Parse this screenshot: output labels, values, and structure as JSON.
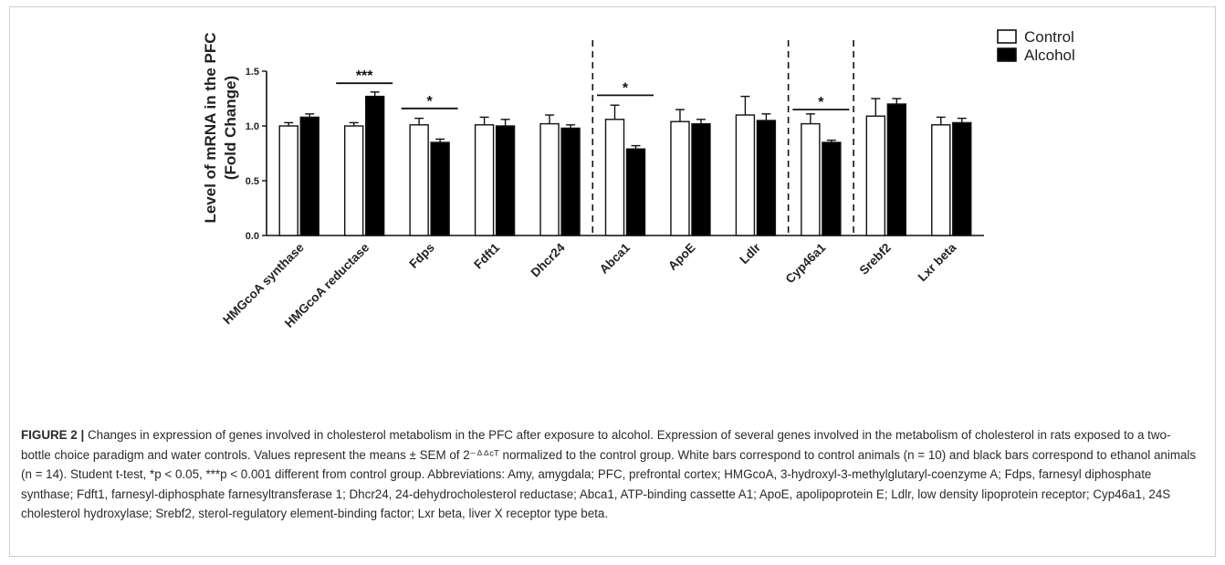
{
  "chart_data": {
    "type": "bar",
    "ylabel_line1": "Level of mRNA in the PFC",
    "ylabel_line2": "(Fold Change)",
    "ylim": [
      0,
      1.5
    ],
    "yticks": [
      "0.0",
      "0.5",
      "1.0",
      "1.5"
    ],
    "categories": [
      "HMGcoA synthase",
      "HMGcoA reductase",
      "Fdps",
      "Fdft1",
      "Dhcr24",
      "Abca1",
      "ApoE",
      "Ldlr",
      "Cyp46a1",
      "Srebf2",
      "Lxr beta"
    ],
    "series": [
      {
        "name": "Control",
        "color": "#ffffff",
        "values": [
          1.0,
          1.0,
          1.01,
          1.01,
          1.02,
          1.06,
          1.04,
          1.1,
          1.02,
          1.09,
          1.01
        ],
        "errors": [
          0.03,
          0.03,
          0.06,
          0.07,
          0.08,
          0.13,
          0.11,
          0.17,
          0.09,
          0.16,
          0.07
        ]
      },
      {
        "name": "Alcohol",
        "color": "#000000",
        "values": [
          1.08,
          1.27,
          0.85,
          1.0,
          0.98,
          0.79,
          1.02,
          1.05,
          0.85,
          1.2,
          1.03
        ],
        "errors": [
          0.03,
          0.04,
          0.03,
          0.06,
          0.03,
          0.03,
          0.04,
          0.06,
          0.02,
          0.05,
          0.04
        ]
      }
    ],
    "significance": [
      {
        "category_index": 1,
        "label": "***",
        "y": 1.39
      },
      {
        "category_index": 2,
        "label": "*",
        "y": 1.16
      },
      {
        "category_index": 5,
        "label": "*",
        "y": 1.28
      },
      {
        "category_index": 8,
        "label": "*",
        "y": 1.15
      }
    ],
    "dividers_after_index": [
      4,
      7,
      8
    ],
    "legend_position": "top-right",
    "grid": false
  },
  "caption": {
    "lead": "FIGURE 2 |",
    "text": "Changes in expression of genes involved in cholesterol metabolism in the PFC after exposure to alcohol. Expression of several genes involved in the metabolism of cholesterol in rats exposed to a two-bottle choice paradigm and water controls. Values represent the means ± SEM of 2⁻ᐞᐞᶜᵀ normalized to the control group. White bars correspond to control animals (n = 10) and black bars correspond to ethanol animals (n = 14). Student t-test, *p < 0.05, ***p < 0.001 different from control group. Abbreviations: Amy, amygdala; PFC, prefrontal cortex; HMGcoA, 3-hydroxyl-3-methylglutaryl-coenzyme A; Fdps, farnesyl diphosphate synthase; Fdft1, farnesyl-diphosphate farnesyltransferase 1; Dhcr24, 24-dehydrocholesterol reductase; Abca1, ATP-binding cassette A1; ApoE, apolipoprotein E; Ldlr, low density lipoprotein receptor; Cyp46a1, 24S cholesterol hydroxylase; Srebf2, sterol-regulatory element-binding factor; Lxr beta, liver X receptor type beta."
  }
}
